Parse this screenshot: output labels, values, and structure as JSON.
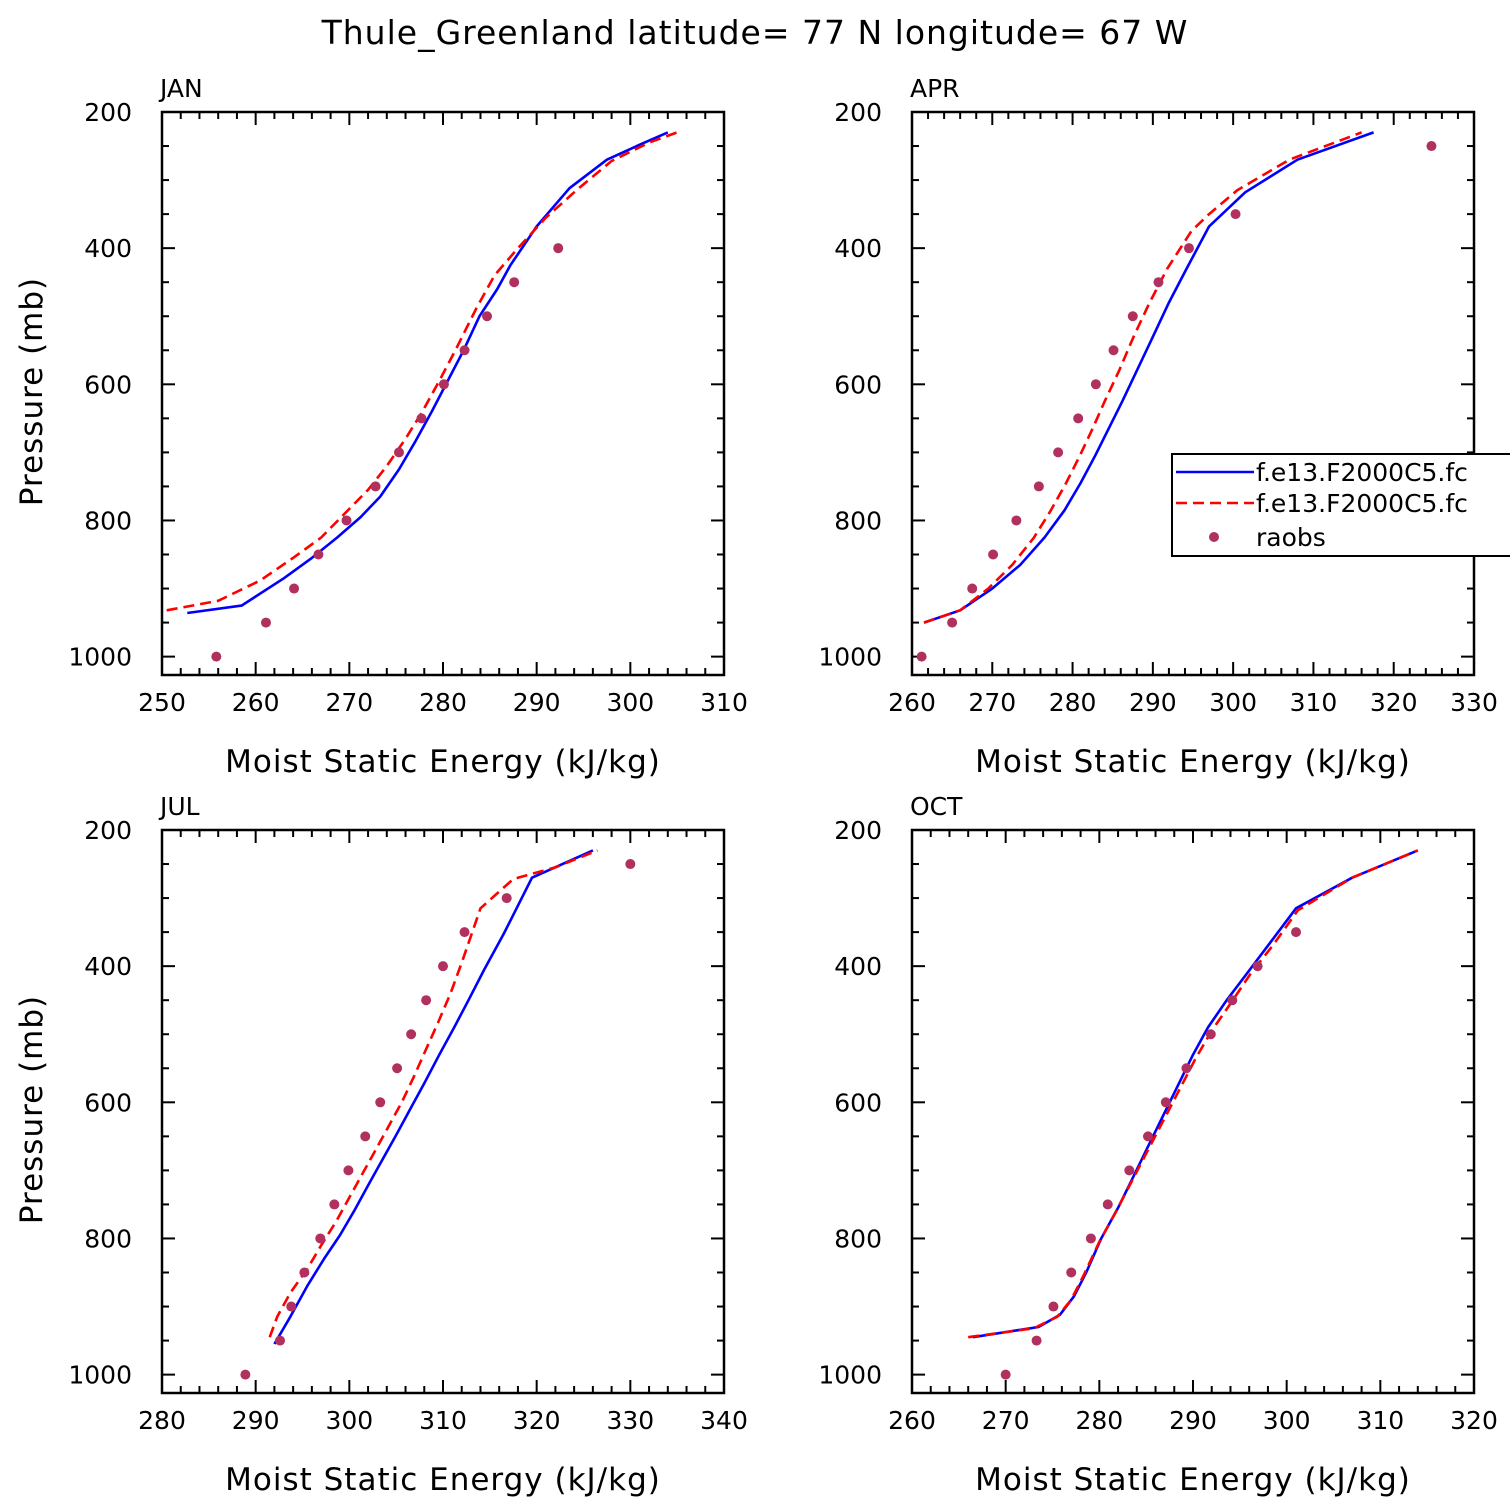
{
  "title": "Thule_Greenland  latitude= 77 N longitude= 67 W",
  "colors": {
    "model1": "#0000ff",
    "model2": "#ff0000",
    "obs": "#b03060"
  },
  "legend": {
    "location": "right of APR panel",
    "entries": [
      "f.e13.F2000C5.fc",
      "f.e13.F2000C5.fc",
      "raobs"
    ]
  },
  "chart_data": [
    {
      "type": "line",
      "panel": "JAN",
      "xlabel": "Moist Static Energy (kJ/kg)",
      "ylabel": "Pressure (mb)",
      "xlim": [
        250,
        310
      ],
      "ylim": [
        1000,
        200
      ],
      "xticks": [
        250,
        260,
        270,
        280,
        290,
        300,
        310
      ],
      "yticks": [
        200,
        400,
        600,
        800,
        1000
      ],
      "series": [
        {
          "name": "f.e13.F2000C5.fc",
          "style": "solid",
          "color": "#0000ff",
          "points": [
            [
              252.7,
              936
            ],
            [
              258.5,
              925
            ],
            [
              263,
              885
            ],
            [
              266,
              855
            ],
            [
              268.7,
              825
            ],
            [
              271.2,
              795
            ],
            [
              273.3,
              765
            ],
            [
              275.3,
              725
            ],
            [
              277,
              685
            ],
            [
              278.8,
              640
            ],
            [
              280.5,
              595
            ],
            [
              282.2,
              550
            ],
            [
              283.9,
              500
            ],
            [
              285.8,
              460
            ],
            [
              287.2,
              425
            ],
            [
              290,
              368
            ],
            [
              293.5,
              312
            ],
            [
              297.5,
              270
            ],
            [
              301,
              248
            ],
            [
              304,
              230
            ]
          ]
        },
        {
          "name": "f.e13.F2000C5.fc",
          "style": "dashed",
          "color": "#ff0000",
          "points": [
            [
              250.5,
              932
            ],
            [
              256,
              918
            ],
            [
              260.5,
              888
            ],
            [
              264,
              855
            ],
            [
              267,
              825
            ],
            [
              269.5,
              790
            ],
            [
              272,
              755
            ],
            [
              274,
              720
            ],
            [
              276,
              680
            ],
            [
              277.8,
              640
            ],
            [
              279.6,
              595
            ],
            [
              281.5,
              545
            ],
            [
              283.5,
              490
            ],
            [
              285.5,
              440
            ],
            [
              288,
              400
            ],
            [
              291,
              355
            ],
            [
              294.5,
              312
            ],
            [
              298,
              272
            ],
            [
              302,
              245
            ],
            [
              305,
              230
            ]
          ]
        },
        {
          "name": "raobs",
          "style": "points",
          "color": "#b03060",
          "points": [
            [
              255.8,
              1000
            ],
            [
              261.1,
              950
            ],
            [
              264.1,
              900
            ],
            [
              266.7,
              850
            ],
            [
              269.7,
              800
            ],
            [
              272.8,
              750
            ],
            [
              275.3,
              700
            ],
            [
              277.7,
              650
            ],
            [
              280.1,
              600
            ],
            [
              282.3,
              550
            ],
            [
              284.7,
              500
            ],
            [
              287.6,
              450
            ],
            [
              292.3,
              400
            ]
          ]
        }
      ]
    },
    {
      "type": "line",
      "panel": "APR",
      "xlabel": "Moist Static Energy (kJ/kg)",
      "ylabel": "",
      "xlim": [
        260,
        330
      ],
      "ylim": [
        1000,
        200
      ],
      "xticks": [
        260,
        270,
        280,
        290,
        300,
        310,
        320,
        330
      ],
      "yticks": [
        200,
        400,
        600,
        800,
        1000
      ],
      "series": [
        {
          "name": "f.e13.F2000C5.fc",
          "style": "solid",
          "color": "#0000ff",
          "points": [
            [
              261.5,
              950
            ],
            [
              266,
              932
            ],
            [
              270,
              900
            ],
            [
              273.5,
              865
            ],
            [
              276.5,
              825
            ],
            [
              279,
              785
            ],
            [
              281,
              745
            ],
            [
              282.8,
              705
            ],
            [
              284.5,
              665
            ],
            [
              286.2,
              625
            ],
            [
              288,
              580
            ],
            [
              290,
              530
            ],
            [
              292,
              480
            ],
            [
              294.2,
              430
            ],
            [
              297,
              368
            ],
            [
              301.5,
              318
            ],
            [
              308,
              270
            ],
            [
              317.5,
              230
            ]
          ]
        },
        {
          "name": "f.e13.F2000C5.fc",
          "style": "dashed",
          "color": "#ff0000",
          "points": [
            [
              261.5,
              950
            ],
            [
              266,
              932
            ],
            [
              269.5,
              900
            ],
            [
              272.5,
              865
            ],
            [
              275.2,
              825
            ],
            [
              277.3,
              785
            ],
            [
              279.2,
              745
            ],
            [
              280.9,
              705
            ],
            [
              282.5,
              665
            ],
            [
              284,
              625
            ],
            [
              285.8,
              580
            ],
            [
              287.6,
              530
            ],
            [
              289.6,
              480
            ],
            [
              291.8,
              430
            ],
            [
              294.8,
              375
            ],
            [
              297,
              350
            ],
            [
              300.5,
              315
            ],
            [
              307,
              270
            ],
            [
              316,
              230
            ]
          ]
        },
        {
          "name": "raobs",
          "style": "points",
          "color": "#b03060",
          "points": [
            [
              261.2,
              1000
            ],
            [
              265,
              950
            ],
            [
              267.5,
              900
            ],
            [
              270.1,
              850
            ],
            [
              273,
              800
            ],
            [
              275.8,
              750
            ],
            [
              278.2,
              700
            ],
            [
              280.7,
              650
            ],
            [
              282.9,
              600
            ],
            [
              285.1,
              550
            ],
            [
              287.5,
              500
            ],
            [
              290.7,
              450
            ],
            [
              294.5,
              400
            ],
            [
              300.3,
              350
            ],
            [
              324.7,
              250
            ]
          ]
        }
      ]
    },
    {
      "type": "line",
      "panel": "JUL",
      "xlabel": "Moist Static Energy (kJ/kg)",
      "ylabel": "Pressure (mb)",
      "xlim": [
        280,
        340
      ],
      "ylim": [
        1000,
        200
      ],
      "xticks": [
        280,
        290,
        300,
        310,
        320,
        330,
        340
      ],
      "yticks": [
        200,
        400,
        600,
        800,
        1000
      ],
      "series": [
        {
          "name": "f.e13.F2000C5.fc",
          "style": "solid",
          "color": "#0000ff",
          "points": [
            [
              292,
              955
            ],
            [
              293.7,
              915
            ],
            [
              295.5,
              870
            ],
            [
              297.3,
              830
            ],
            [
              299,
              795
            ],
            [
              300.5,
              760
            ],
            [
              302,
              722
            ],
            [
              303.5,
              685
            ],
            [
              305,
              648
            ],
            [
              306.5,
              610
            ],
            [
              308,
              572
            ],
            [
              309.6,
              530
            ],
            [
              311.2,
              490
            ],
            [
              312.8,
              448
            ],
            [
              314.4,
              405
            ],
            [
              316.5,
              352
            ],
            [
              319.5,
              270
            ],
            [
              326,
              230
            ]
          ]
        },
        {
          "name": "f.e13.F2000C5.fc",
          "style": "dashed",
          "color": "#ff0000",
          "points": [
            [
              291.5,
              945
            ],
            [
              292.3,
              915
            ],
            [
              293.7,
              880
            ],
            [
              295.5,
              845
            ],
            [
              297,
              810
            ],
            [
              298.6,
              775
            ],
            [
              300,
              740
            ],
            [
              301.4,
              705
            ],
            [
              302.8,
              670
            ],
            [
              304.2,
              635
            ],
            [
              305.6,
              600
            ],
            [
              306.9,
              562
            ],
            [
              308.2,
              522
            ],
            [
              309.5,
              482
            ],
            [
              310.8,
              440
            ],
            [
              312,
              395
            ],
            [
              314,
              315
            ],
            [
              317.5,
              272
            ],
            [
              322,
              255
            ],
            [
              326.5,
              230
            ]
          ]
        },
        {
          "name": "raobs",
          "style": "points",
          "color": "#b03060",
          "points": [
            [
              288.9,
              1000
            ],
            [
              292.6,
              950
            ],
            [
              293.8,
              900
            ],
            [
              295.2,
              850
            ],
            [
              296.9,
              800
            ],
            [
              298.4,
              750
            ],
            [
              299.9,
              700
            ],
            [
              301.7,
              650
            ],
            [
              303.3,
              600
            ],
            [
              305.1,
              550
            ],
            [
              306.6,
              500
            ],
            [
              308.2,
              450
            ],
            [
              310,
              400
            ],
            [
              312.3,
              350
            ],
            [
              316.8,
              300
            ],
            [
              330,
              250
            ]
          ]
        }
      ]
    },
    {
      "type": "line",
      "panel": "OCT",
      "xlabel": "Moist Static Energy (kJ/kg)",
      "ylabel": "",
      "xlim": [
        260,
        320
      ],
      "ylim": [
        1000,
        200
      ],
      "xticks": [
        260,
        270,
        280,
        290,
        300,
        310,
        320
      ],
      "yticks": [
        200,
        400,
        600,
        800,
        1000
      ],
      "series": [
        {
          "name": "f.e13.F2000C5.fc",
          "style": "solid",
          "color": "#0000ff",
          "points": [
            [
              266.5,
              945
            ],
            [
              273.5,
              930
            ],
            [
              275.8,
              912
            ],
            [
              277.3,
              885
            ],
            [
              278.6,
              850
            ],
            [
              280.2,
              800
            ],
            [
              282,
              755
            ],
            [
              283.6,
              710
            ],
            [
              285.2,
              665
            ],
            [
              286.8,
              620
            ],
            [
              288.4,
              575
            ],
            [
              290,
              530
            ],
            [
              291.6,
              490
            ],
            [
              293.6,
              450
            ],
            [
              295.8,
              410
            ],
            [
              298,
              370
            ],
            [
              301,
              315
            ],
            [
              307,
              270
            ],
            [
              314,
              230
            ]
          ]
        },
        {
          "name": "f.e13.F2000C5.fc",
          "style": "dashed",
          "color": "#ff0000",
          "points": [
            [
              266,
              945
            ],
            [
              273,
              932
            ],
            [
              275.5,
              915
            ],
            [
              277,
              890
            ],
            [
              278.3,
              855
            ],
            [
              280,
              805
            ],
            [
              281.8,
              760
            ],
            [
              283.5,
              715
            ],
            [
              285.2,
              670
            ],
            [
              286.9,
              625
            ],
            [
              288.6,
              580
            ],
            [
              290.3,
              535
            ],
            [
              292,
              495
            ],
            [
              294,
              455
            ],
            [
              296.2,
              410
            ],
            [
              298.5,
              370
            ],
            [
              301.2,
              318
            ],
            [
              307,
              270
            ],
            [
              314,
              230
            ]
          ]
        },
        {
          "name": "raobs",
          "style": "points",
          "color": "#b03060",
          "points": [
            [
              270,
              1000
            ],
            [
              273.3,
              950
            ],
            [
              275.1,
              900
            ],
            [
              277,
              850
            ],
            [
              279.1,
              800
            ],
            [
              280.9,
              750
            ],
            [
              283.2,
              700
            ],
            [
              285.2,
              650
            ],
            [
              287.1,
              600
            ],
            [
              289.3,
              550
            ],
            [
              291.9,
              500
            ],
            [
              294.2,
              450
            ],
            [
              296.9,
              400
            ],
            [
              301,
              350
            ]
          ]
        }
      ]
    }
  ]
}
